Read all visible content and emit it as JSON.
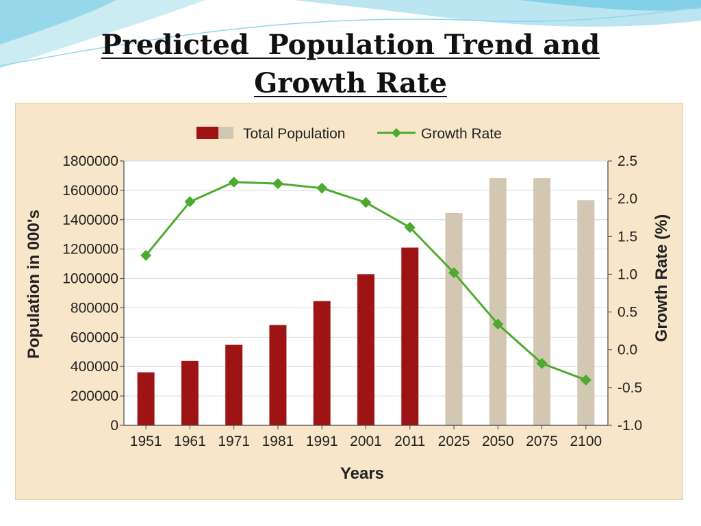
{
  "slide": {
    "title_line1": "Predicted  Population Trend and",
    "title_line2": "Growth Rate"
  },
  "colors": {
    "bar_historical": "#9e1414",
    "bar_projected": "#d2c7b2",
    "growth_line": "#4cab2e",
    "panel_background": "#f7e6c9",
    "plot_background": "#ffffff",
    "grid": "#d9d9d9",
    "decor_wave": "#7fd0e6"
  },
  "chart_data": {
    "type": "bar",
    "title": "",
    "legend": {
      "position": "top",
      "bar_label": "Total Population",
      "line_label": "Growth Rate"
    },
    "categories": [
      "1951",
      "1961",
      "1971",
      "1981",
      "1991",
      "2001",
      "2011",
      "2025",
      "2050",
      "2075",
      "2100"
    ],
    "series": [
      {
        "name": "Total Population",
        "kind": "bar",
        "axis": "left",
        "values": [
          361000,
          439000,
          548000,
          683000,
          846000,
          1029000,
          1210000,
          1446000,
          1683000,
          1683000,
          1533000
        ],
        "projected_from_index": 7
      },
      {
        "name": "Growth Rate",
        "kind": "line",
        "axis": "right",
        "marker": "diamond",
        "values": [
          1.25,
          1.96,
          2.22,
          2.2,
          2.14,
          1.95,
          1.62,
          1.02,
          0.34,
          -0.18,
          -0.4
        ]
      }
    ],
    "xlabel": "Years",
    "ylabel": "Population in 000's",
    "y2label": "Growth Rate (%)",
    "ylim": [
      0,
      1800000
    ],
    "y2lim": [
      -1.0,
      2.5
    ],
    "yticks": [
      "0",
      "200000",
      "400000",
      "600000",
      "800000",
      "1000000",
      "1200000",
      "1400000",
      "1600000",
      "1800000"
    ],
    "y2ticks": [
      "-1.0",
      "-0.5",
      "0.0",
      "0.5",
      "1.0",
      "1.5",
      "2.0",
      "2.5"
    ],
    "grid": true
  }
}
